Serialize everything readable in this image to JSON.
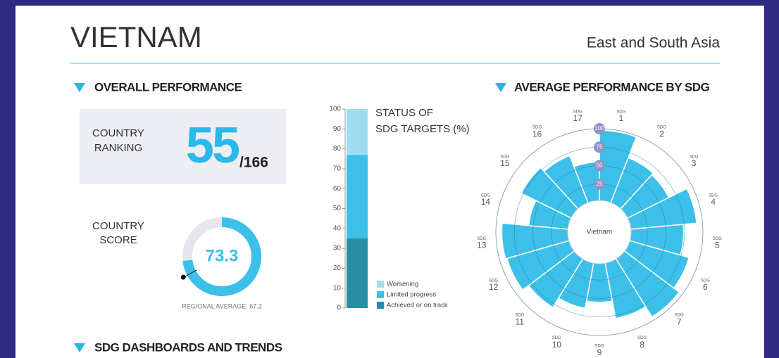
{
  "header": {
    "title": "VIETNAM",
    "region": "East and South Asia"
  },
  "sections": [
    "OVERALL PERFORMANCE",
    "AVERAGE PERFORMANCE BY SDG",
    "SDG DASHBOARDS AND TRENDS"
  ],
  "ranking": {
    "label": [
      "COUNTRY",
      "RANKING"
    ],
    "rank": "55",
    "total": "/166"
  },
  "chart_data": [
    {
      "type": "gauge",
      "label": [
        "COUNTRY",
        "SCORE"
      ],
      "value": 73.3,
      "reference": 67.2,
      "reference_label": "REGIONAL AVERAGE: 67.2",
      "lim": [
        0,
        100
      ],
      "color": "#3cc0ea",
      "track_color": "#e6e7ec"
    },
    {
      "type": "stacked-bar",
      "title": [
        "STATUS OF",
        "SDG TARGETS (%)"
      ],
      "series": [
        {
          "name": "Worsening",
          "color": "#9fdcf1",
          "values": [
            23
          ]
        },
        {
          "name": "Limited progress",
          "color": "#3cc0ea",
          "values": [
            42
          ]
        },
        {
          "name": "Achieved or on track",
          "color": "#2a8ea3",
          "values": [
            35
          ]
        }
      ],
      "ylim": [
        0,
        100
      ],
      "yticks": [
        0,
        10,
        20,
        30,
        40,
        50,
        60,
        70,
        80,
        90,
        100
      ]
    },
    {
      "type": "polar",
      "center_label": "Vietnam",
      "category_prefix": "SDG",
      "categories": [
        "1",
        "2",
        "3",
        "4",
        "5",
        "6",
        "7",
        "8",
        "9",
        "10",
        "11",
        "12",
        "13",
        "14",
        "15",
        "16",
        "17"
      ],
      "values": [
        98,
        68,
        65,
        92,
        74,
        86,
        95,
        79,
        55,
        65,
        80,
        90,
        92,
        56,
        78,
        71,
        55
      ],
      "color": "#3cc0ea",
      "rlim": [
        0,
        100
      ],
      "rticks": [
        25,
        50,
        75,
        100
      ],
      "grid": true
    }
  ]
}
